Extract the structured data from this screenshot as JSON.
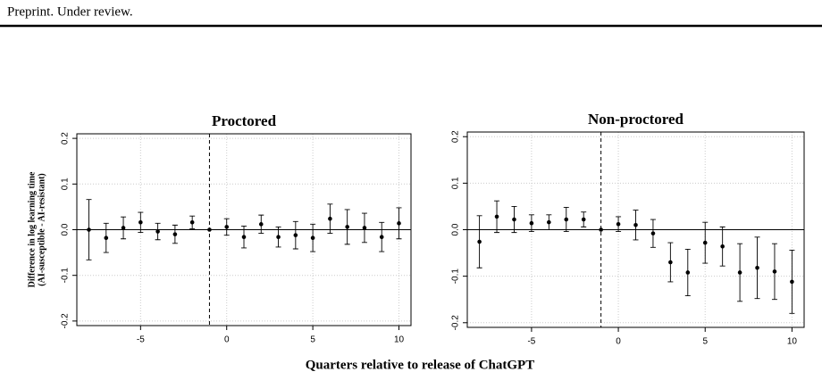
{
  "header": "Preprint. Under review.",
  "xlabel": "Quarters relative to release of ChatGPT",
  "chart_data": [
    {
      "type": "errorbar",
      "title": "Proctored",
      "ylabel": [
        "Difference in log learning time",
        "(AI-susceptible - AI-resistant)"
      ],
      "x": [
        -8,
        -7,
        -6,
        -5,
        -4,
        -3,
        -2,
        -1,
        0,
        1,
        2,
        3,
        4,
        5,
        6,
        7,
        8,
        9,
        10
      ],
      "values": [
        0.0,
        -0.018,
        0.004,
        0.016,
        -0.004,
        -0.01,
        0.016,
        0,
        0.006,
        -0.016,
        0.012,
        -0.016,
        -0.012,
        -0.018,
        0.024,
        0.006,
        0.004,
        -0.016,
        0.014
      ],
      "errors": [
        0.066,
        0.032,
        0.024,
        0.022,
        0.018,
        0.02,
        0.014,
        null,
        0.018,
        0.024,
        0.02,
        0.022,
        0.03,
        0.03,
        0.032,
        0.038,
        0.032,
        0.032,
        0.034
      ],
      "xlim": [
        -8.7,
        10.7
      ],
      "ylim": [
        -0.21,
        0.21
      ],
      "xticks": [
        -5,
        0,
        5,
        10
      ],
      "yticks": [
        -0.2,
        -0.1,
        {
          "value": 0,
          "label": "0.0"
        },
        0.1,
        0.2
      ],
      "vline": -1,
      "hline": 0,
      "grid": true,
      "color": "#000000"
    },
    {
      "type": "errorbar",
      "title": "Non-proctored",
      "x": [
        -8,
        -7,
        -6,
        -5,
        -4,
        -3,
        -2,
        -1,
        0,
        1,
        2,
        3,
        4,
        5,
        6,
        7,
        8,
        9,
        10
      ],
      "values": [
        -0.026,
        0.028,
        0.022,
        0.014,
        0.016,
        0.022,
        0.022,
        0,
        0.012,
        0.01,
        -0.008,
        -0.07,
        -0.092,
        -0.028,
        -0.036,
        -0.092,
        -0.082,
        -0.09,
        -0.112
      ],
      "errors": [
        0.056,
        0.034,
        0.028,
        0.018,
        0.016,
        0.026,
        0.016,
        null,
        0.016,
        0.032,
        0.03,
        0.042,
        0.05,
        0.044,
        0.042,
        0.062,
        0.066,
        0.06,
        0.068
      ],
      "xlim": [
        -8.7,
        10.7
      ],
      "ylim": [
        -0.21,
        0.21
      ],
      "xticks": [
        -5,
        0,
        5,
        10
      ],
      "yticks": [
        -0.2,
        -0.1,
        {
          "value": 0,
          "label": "0.0"
        },
        0.1,
        0.2
      ],
      "vline": -1,
      "hline": 0,
      "grid": true,
      "color": "#000000"
    }
  ]
}
